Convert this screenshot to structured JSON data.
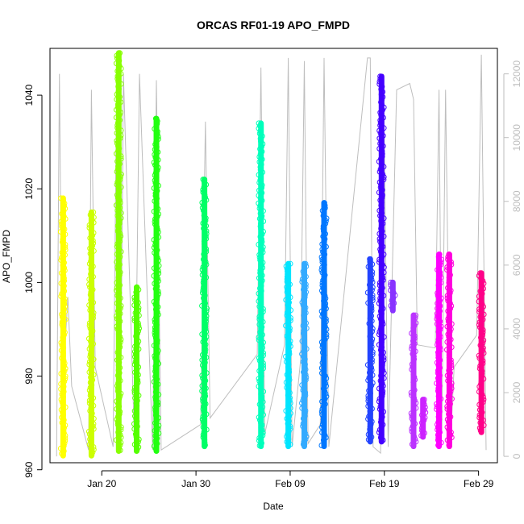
{
  "chart_data": {
    "type": "scatter",
    "title": "ORCAS RF01-19 APO_FMPD",
    "xlabel": "Date",
    "ylabel": "APO_FMPD",
    "x_ticks": [
      "Jan 20",
      "Jan 30",
      "Feb 09",
      "Feb 19",
      "Feb 29"
    ],
    "x_tick_days": [
      20,
      30,
      40,
      50,
      60
    ],
    "xlim_days": [
      14.5,
      62
    ],
    "ylim": [
      961.5,
      1050
    ],
    "y_ticks": [
      960,
      980,
      1000,
      1020,
      1040
    ],
    "y2lim": [
      -200,
      12800
    ],
    "y2_ticks": [
      0,
      2000,
      4000,
      6000,
      8000,
      10000,
      12000
    ],
    "y2_color": "#bebebe",
    "grid": false,
    "legend": "none",
    "series": [
      {
        "x": 15.9,
        "ymin": 963,
        "ymax": 1018,
        "color": "#ffff00"
      },
      {
        "x": 18.9,
        "ymin": 963,
        "ymax": 1015,
        "color": "#ccff00"
      },
      {
        "x": 21.8,
        "ymin": 964,
        "ymax": 1049,
        "color": "#88ff00"
      },
      {
        "x": 23.7,
        "ymin": 964,
        "ymax": 999,
        "color": "#55ff00"
      },
      {
        "x": 25.8,
        "ymin": 964,
        "ymax": 1035,
        "color": "#22ff11"
      },
      {
        "x": 30.9,
        "ymin": 965,
        "ymax": 1022,
        "color": "#00ff66"
      },
      {
        "x": 36.9,
        "ymin": 965,
        "ymax": 1034,
        "color": "#00ffbb"
      },
      {
        "x": 39.8,
        "ymin": 965,
        "ymax": 1004,
        "color": "#00e5ff"
      },
      {
        "x": 41.5,
        "ymin": 965,
        "ymax": 1004,
        "color": "#33aaff"
      },
      {
        "x": 43.6,
        "ymin": 965,
        "ymax": 1017,
        "color": "#0077ff"
      },
      {
        "x": 48.5,
        "ymin": 966,
        "ymax": 1005,
        "color": "#2244ff"
      },
      {
        "x": 49.7,
        "ymin": 966,
        "ymax": 1044,
        "color": "#4400ff"
      },
      {
        "x": 50.9,
        "ymin": 994,
        "ymax": 1000,
        "color": "#8833ff"
      },
      {
        "x": 53.1,
        "ymin": 965,
        "ymax": 993,
        "color": "#bb33ff"
      },
      {
        "x": 54.1,
        "ymin": 967,
        "ymax": 975,
        "color": "#cc22ff"
      },
      {
        "x": 55.8,
        "ymin": 965,
        "ymax": 1006,
        "color": "#ff00ff"
      },
      {
        "x": 56.9,
        "ymin": 965,
        "ymax": 1006,
        "color": "#ff00dd"
      },
      {
        "x": 60.3,
        "ymin": 968,
        "ymax": 1002,
        "color": "#ff0088"
      }
    ],
    "altitude_line": {
      "color": "#bebebe",
      "x": [
        15.2,
        15.5,
        15.8,
        16.4,
        16.8,
        18.6,
        18.9,
        19.3,
        21.2,
        21.6,
        22.0,
        22.3,
        23.5,
        24.0,
        25.4,
        25.8,
        26.3,
        30.5,
        31.0,
        31.5,
        36.5,
        36.9,
        37.3,
        39.4,
        39.8,
        40.2,
        41.1,
        41.5,
        41.9,
        43.2,
        43.6,
        44.1,
        48.2,
        48.5,
        48.8,
        49.6,
        49.9,
        50.4,
        51.3,
        52.7,
        53.1,
        53.5,
        55.4,
        55.8,
        56.1,
        56.5,
        57.0,
        57.4,
        59.8,
        60.3,
        60.8
      ],
      "y": [
        0,
        12000,
        2000,
        5000,
        2200,
        200,
        11500,
        2800,
        300,
        12500,
        1200,
        12000,
        100,
        12000,
        200,
        11800,
        200,
        1000,
        10500,
        1200,
        3200,
        12200,
        700,
        3500,
        12500,
        300,
        3000,
        12400,
        400,
        1000,
        12500,
        300,
        12500,
        12500,
        300,
        100,
        12000,
        300,
        11500,
        11700,
        11200,
        3500,
        3400,
        11500,
        800,
        11500,
        300,
        2800,
        3800,
        12600,
        200
      ]
    }
  }
}
